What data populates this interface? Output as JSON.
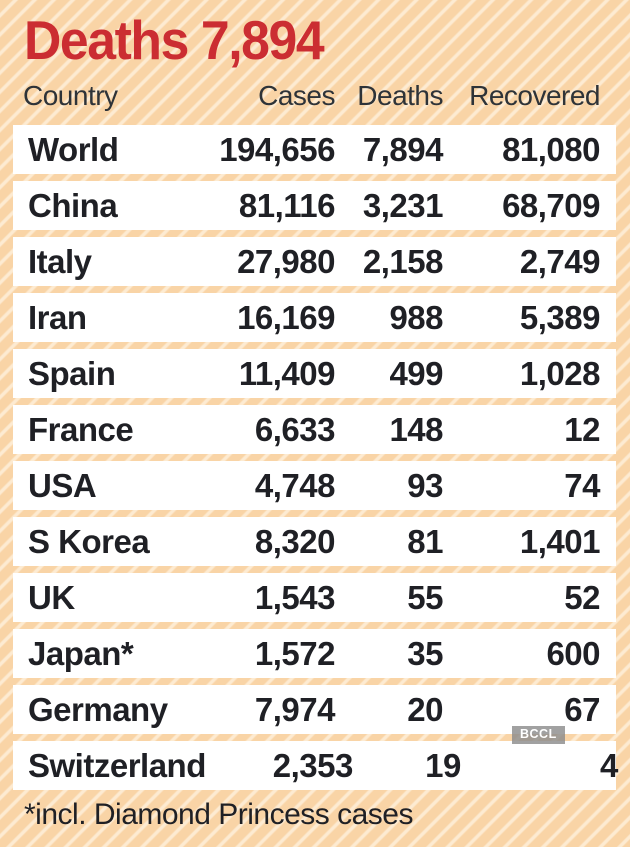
{
  "chart_data": {
    "type": "table",
    "title": "Deaths 7,894",
    "columns": [
      "Country",
      "Cases",
      "Deaths",
      "Recovered"
    ],
    "rows": [
      [
        "World",
        "194,656",
        "7,894",
        "81,080"
      ],
      [
        "China",
        "81,116",
        "3,231",
        "68,709"
      ],
      [
        "Italy",
        "27,980",
        "2,158",
        "2,749"
      ],
      [
        "Iran",
        "16,169",
        "988",
        "5,389"
      ],
      [
        "Spain",
        "11,409",
        "499",
        "1,028"
      ],
      [
        "France",
        "6,633",
        "148",
        "12"
      ],
      [
        "USA",
        "4,748",
        "93",
        "74"
      ],
      [
        "S Korea",
        "8,320",
        "81",
        "1,401"
      ],
      [
        "UK",
        "1,543",
        "55",
        "52"
      ],
      [
        "Japan*",
        "1,572",
        "35",
        "600"
      ],
      [
        "Germany",
        "7,974",
        "20",
        "67"
      ],
      [
        "Switzerland",
        "2,353",
        "19",
        "4"
      ]
    ],
    "footnote": "*incl. Diamond Princess cases"
  },
  "watermark": {
    "label": "BCCL"
  },
  "colors": {
    "background": "#f9d4a6",
    "stripe": "#fdebd2",
    "row_background": "#ffffff",
    "accent_red": "#cb2d32",
    "text": "#1f2025",
    "header_text": "#2e3338",
    "badge_background": "#8c8c8cD0",
    "badge_text": "#ffffff"
  }
}
